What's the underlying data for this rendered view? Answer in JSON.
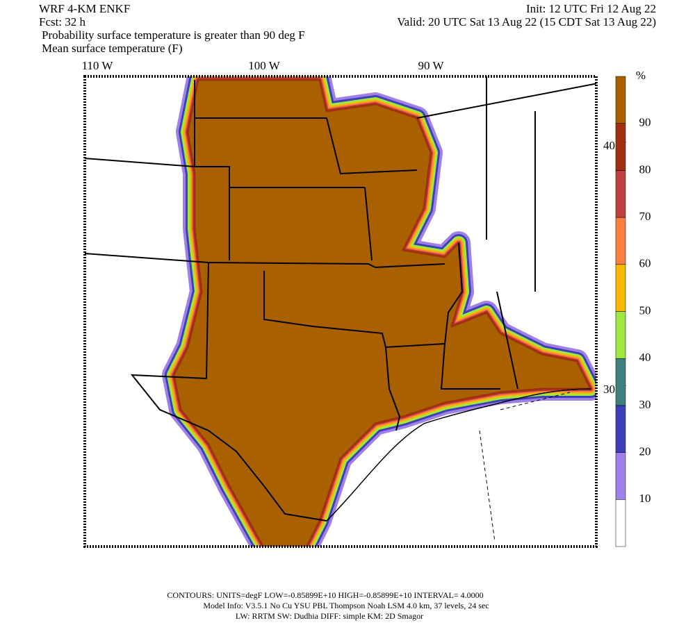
{
  "header": {
    "model": "WRF 4-KM ENKF",
    "init": "Init: 12 UTC Fri 12 Aug 22",
    "fcst": "Fcst:   32 h",
    "valid": "Valid: 20 UTC Sat 13 Aug 22 (15 CDT Sat 13 Aug 22)",
    "field1": "Probability surface temperature is greater than 90 deg F",
    "field2": "Mean surface temperature (F)"
  },
  "map": {
    "lon_labels": [
      "110 W",
      "100 W",
      "90 W"
    ],
    "lat_labels": [
      "40 N",
      "30 N"
    ]
  },
  "colorbar": {
    "unit": "%",
    "levels": [
      10,
      20,
      30,
      40,
      50,
      60,
      70,
      80,
      90
    ],
    "colors": [
      "#ffffff",
      "#9f7fe8",
      "#3f3fb8",
      "#3f7f7f",
      "#9fe83f",
      "#f8b800",
      "#f8803f",
      "#c04040",
      "#a03010",
      "#a86000"
    ]
  },
  "footer": [
    "CONTOURS:  UNITS=degF  LOW=-0.85899E+10  HIGH=-0.85899E+10  INTERVAL=    4.0000",
    "Model Info: V3.5.1    No Cu    YSU PBL  Thompson     Noah LSM  4.0 km,  37 levels,    24 sec",
    "LW: RRTM SW: Dudhia  DIFF: simple KM: 2D Smagor"
  ]
}
